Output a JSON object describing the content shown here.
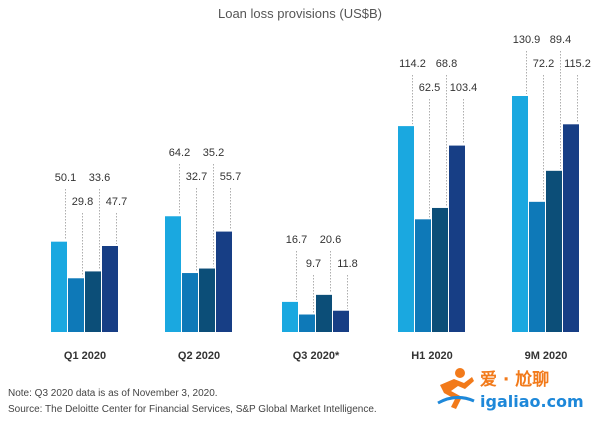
{
  "chart_data": {
    "type": "bar",
    "title": "Loan loss provisions (US$B)",
    "categories": [
      "Q1 2020",
      "Q2 2020",
      "Q3 2020*",
      "H1 2020",
      "9M 2020"
    ],
    "series": [
      {
        "values": [
          50.1,
          64.2,
          16.7,
          114.2,
          130.9
        ],
        "color": "#1AA8E0"
      },
      {
        "values": [
          29.8,
          32.7,
          9.7,
          62.5,
          72.2
        ],
        "color": "#0E79B8"
      },
      {
        "values": [
          33.6,
          35.2,
          20.6,
          68.8,
          89.4
        ],
        "color": "#0C4E78"
      },
      {
        "values": [
          47.7,
          55.7,
          11.8,
          103.4,
          115.2
        ],
        "color": "#173E85"
      }
    ],
    "data_labels": [
      [
        "50.1",
        "64.2",
        "16.7",
        "114.2",
        "130.9"
      ],
      [
        "29.8",
        "32.7",
        "9.7",
        "62.5",
        "72.2"
      ],
      [
        "33.6",
        "35.2",
        "20.6",
        "68.8",
        "89.4"
      ],
      [
        "47.7",
        "55.7",
        "11.8",
        "103.4",
        "115.2"
      ]
    ],
    "ylim": [
      0,
      140
    ],
    "grid": false,
    "legend": "none"
  },
  "note": "Note: Q3 2020 data is as of November 3, 2020.",
  "source": "Source: The Deloitte Center for Financial Services, S&P Global Market Intelligence.",
  "watermark": {
    "cn_text": "爱 · 尬聊",
    "url_text": "igaliao.com",
    "colors": {
      "orange": "#F27A1A",
      "blue": "#1E88D9"
    }
  }
}
